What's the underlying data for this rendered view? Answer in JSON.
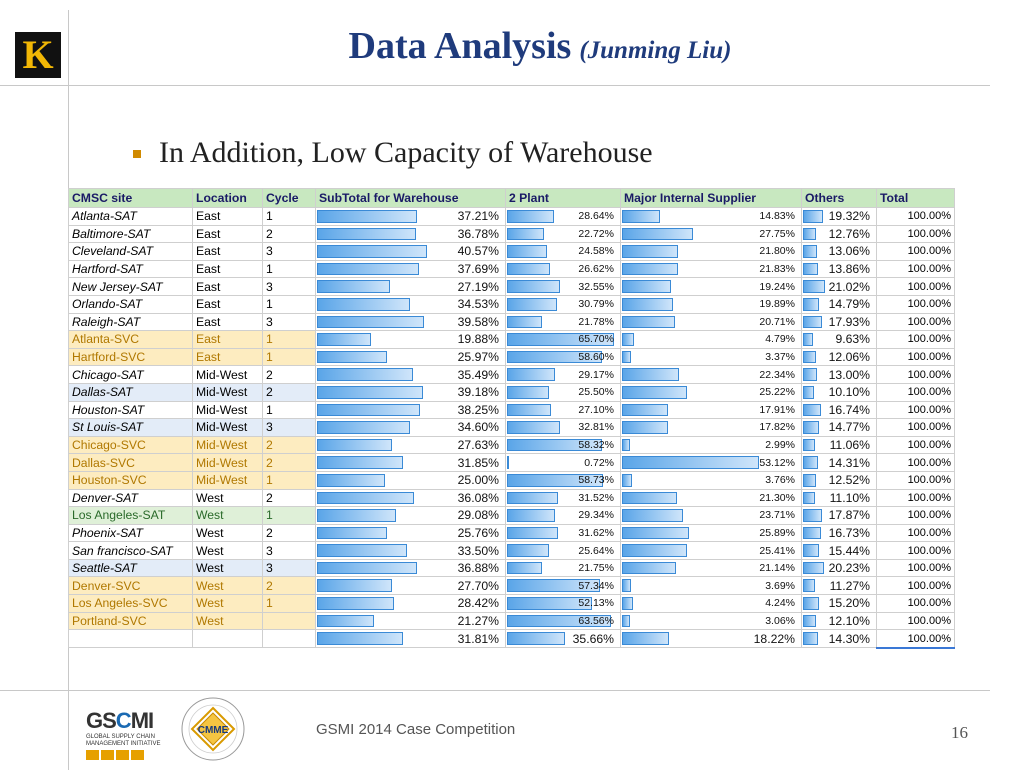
{
  "logo": {
    "letter": "K"
  },
  "title": {
    "main": "Data Analysis",
    "sub": "(Junming Liu)"
  },
  "bullet": "In Addition, Low Capacity of Warehouse",
  "table": {
    "headers": [
      "CMSC site",
      "Location",
      "Cycle",
      "SubTotal for Warehouse",
      "2 Plant",
      "Major Internal Supplier",
      "Others",
      "Total"
    ],
    "rows": [
      {
        "site": "Atlanta-SAT",
        "loc": "East",
        "cyc": "1",
        "wh": "37.21%",
        "plant": "28.64%",
        "mis": "14.83%",
        "oth": "19.32%",
        "tot": "100.00%",
        "type": "sat"
      },
      {
        "site": "Baltimore-SAT",
        "loc": "East",
        "cyc": "2",
        "wh": "36.78%",
        "plant": "22.72%",
        "mis": "27.75%",
        "oth": "12.76%",
        "tot": "100.00%",
        "type": "sat"
      },
      {
        "site": "Cleveland-SAT",
        "loc": "East",
        "cyc": "3",
        "wh": "40.57%",
        "plant": "24.58%",
        "mis": "21.80%",
        "oth": "13.06%",
        "tot": "100.00%",
        "type": "sat"
      },
      {
        "site": "Hartford-SAT",
        "loc": "East",
        "cyc": "1",
        "wh": "37.69%",
        "plant": "26.62%",
        "mis": "21.83%",
        "oth": "13.86%",
        "tot": "100.00%",
        "type": "sat"
      },
      {
        "site": "New Jersey-SAT",
        "loc": "East",
        "cyc": "3",
        "wh": "27.19%",
        "plant": "32.55%",
        "mis": "19.24%",
        "oth": "21.02%",
        "tot": "100.00%",
        "type": "sat"
      },
      {
        "site": "Orlando-SAT",
        "loc": "East",
        "cyc": "1",
        "wh": "34.53%",
        "plant": "30.79%",
        "mis": "19.89%",
        "oth": "14.79%",
        "tot": "100.00%",
        "type": "sat"
      },
      {
        "site": "Raleigh-SAT",
        "loc": "East",
        "cyc": "3",
        "wh": "39.58%",
        "plant": "21.78%",
        "mis": "20.71%",
        "oth": "17.93%",
        "tot": "100.00%",
        "type": "sat"
      },
      {
        "site": "Atlanta-SVC",
        "loc": "East",
        "cyc": "1",
        "wh": "19.88%",
        "plant": "65.70%",
        "mis": "4.79%",
        "oth": "9.63%",
        "tot": "100.00%",
        "type": "svc"
      },
      {
        "site": "Hartford-SVC",
        "loc": "East",
        "cyc": "1",
        "wh": "25.97%",
        "plant": "58.60%",
        "mis": "3.37%",
        "oth": "12.06%",
        "tot": "100.00%",
        "type": "svc"
      },
      {
        "site": "Chicago-SAT",
        "loc": "Mid-West",
        "cyc": "2",
        "wh": "35.49%",
        "plant": "29.17%",
        "mis": "22.34%",
        "oth": "13.00%",
        "tot": "100.00%",
        "type": "sat"
      },
      {
        "site": "Dallas-SAT",
        "loc": "Mid-West",
        "cyc": "2",
        "wh": "39.18%",
        "plant": "25.50%",
        "mis": "25.22%",
        "oth": "10.10%",
        "tot": "100.00%",
        "type": "blue"
      },
      {
        "site": "Houston-SAT",
        "loc": "Mid-West",
        "cyc": "1",
        "wh": "38.25%",
        "plant": "27.10%",
        "mis": "17.91%",
        "oth": "16.74%",
        "tot": "100.00%",
        "type": "sat"
      },
      {
        "site": "St Louis-SAT",
        "loc": "Mid-West",
        "cyc": "3",
        "wh": "34.60%",
        "plant": "32.81%",
        "mis": "17.82%",
        "oth": "14.77%",
        "tot": "100.00%",
        "type": "blue"
      },
      {
        "site": "Chicago-SVC",
        "loc": "Mid-West",
        "cyc": "2",
        "wh": "27.63%",
        "plant": "58.32%",
        "mis": "2.99%",
        "oth": "11.06%",
        "tot": "100.00%",
        "type": "svc"
      },
      {
        "site": "Dallas-SVC",
        "loc": "Mid-West",
        "cyc": "2",
        "wh": "31.85%",
        "plant": "0.72%",
        "mis": "53.12%",
        "oth": "14.31%",
        "tot": "100.00%",
        "type": "svc"
      },
      {
        "site": "Houston-SVC",
        "loc": "Mid-West",
        "cyc": "1",
        "wh": "25.00%",
        "plant": "58.73%",
        "mis": "3.76%",
        "oth": "12.52%",
        "tot": "100.00%",
        "type": "svc"
      },
      {
        "site": "Denver-SAT",
        "loc": "West",
        "cyc": "2",
        "wh": "36.08%",
        "plant": "31.52%",
        "mis": "21.30%",
        "oth": "11.10%",
        "tot": "100.00%",
        "type": "sat"
      },
      {
        "site": "Los Angeles-SAT",
        "loc": "West",
        "cyc": "1",
        "wh": "29.08%",
        "plant": "29.34%",
        "mis": "23.71%",
        "oth": "17.87%",
        "tot": "100.00%",
        "type": "green"
      },
      {
        "site": "Phoenix-SAT",
        "loc": "West",
        "cyc": "2",
        "wh": "25.76%",
        "plant": "31.62%",
        "mis": "25.89%",
        "oth": "16.73%",
        "tot": "100.00%",
        "type": "sat"
      },
      {
        "site": "San francisco-SAT",
        "loc": "West",
        "cyc": "3",
        "wh": "33.50%",
        "plant": "25.64%",
        "mis": "25.41%",
        "oth": "15.44%",
        "tot": "100.00%",
        "type": "sat"
      },
      {
        "site": "Seattle-SAT",
        "loc": "West",
        "cyc": "3",
        "wh": "36.88%",
        "plant": "21.75%",
        "mis": "21.14%",
        "oth": "20.23%",
        "tot": "100.00%",
        "type": "blue"
      },
      {
        "site": "Denver-SVC",
        "loc": "West",
        "cyc": "2",
        "wh": "27.70%",
        "plant": "57.34%",
        "mis": "3.69%",
        "oth": "11.27%",
        "tot": "100.00%",
        "type": "svc"
      },
      {
        "site": "Los Angeles-SVC",
        "loc": "West",
        "cyc": "1",
        "wh": "28.42%",
        "plant": "52.13%",
        "mis": "4.24%",
        "oth": "15.20%",
        "tot": "100.00%",
        "type": "svc"
      },
      {
        "site": "Portland-SVC",
        "loc": "West",
        "cyc": "",
        "wh": "21.27%",
        "plant": "63.56%",
        "mis": "3.06%",
        "oth": "12.10%",
        "tot": "100.00%",
        "type": "svc"
      }
    ],
    "summary": {
      "wh": "31.81%",
      "plant": "35.66%",
      "mis": "18.22%",
      "oth": "14.30%",
      "tot": "100.00%"
    }
  },
  "footer": {
    "org_abbr_prefix": "GS",
    "org_abbr_c": "C",
    "org_abbr_suffix": "MI",
    "org_full": "GLOBAL SUPPLY CHAIN MANAGEMENT INITIATIVE",
    "seal_text": "CMME",
    "competition": "GSMI 2014 Case Competition",
    "page_number": "16"
  }
}
